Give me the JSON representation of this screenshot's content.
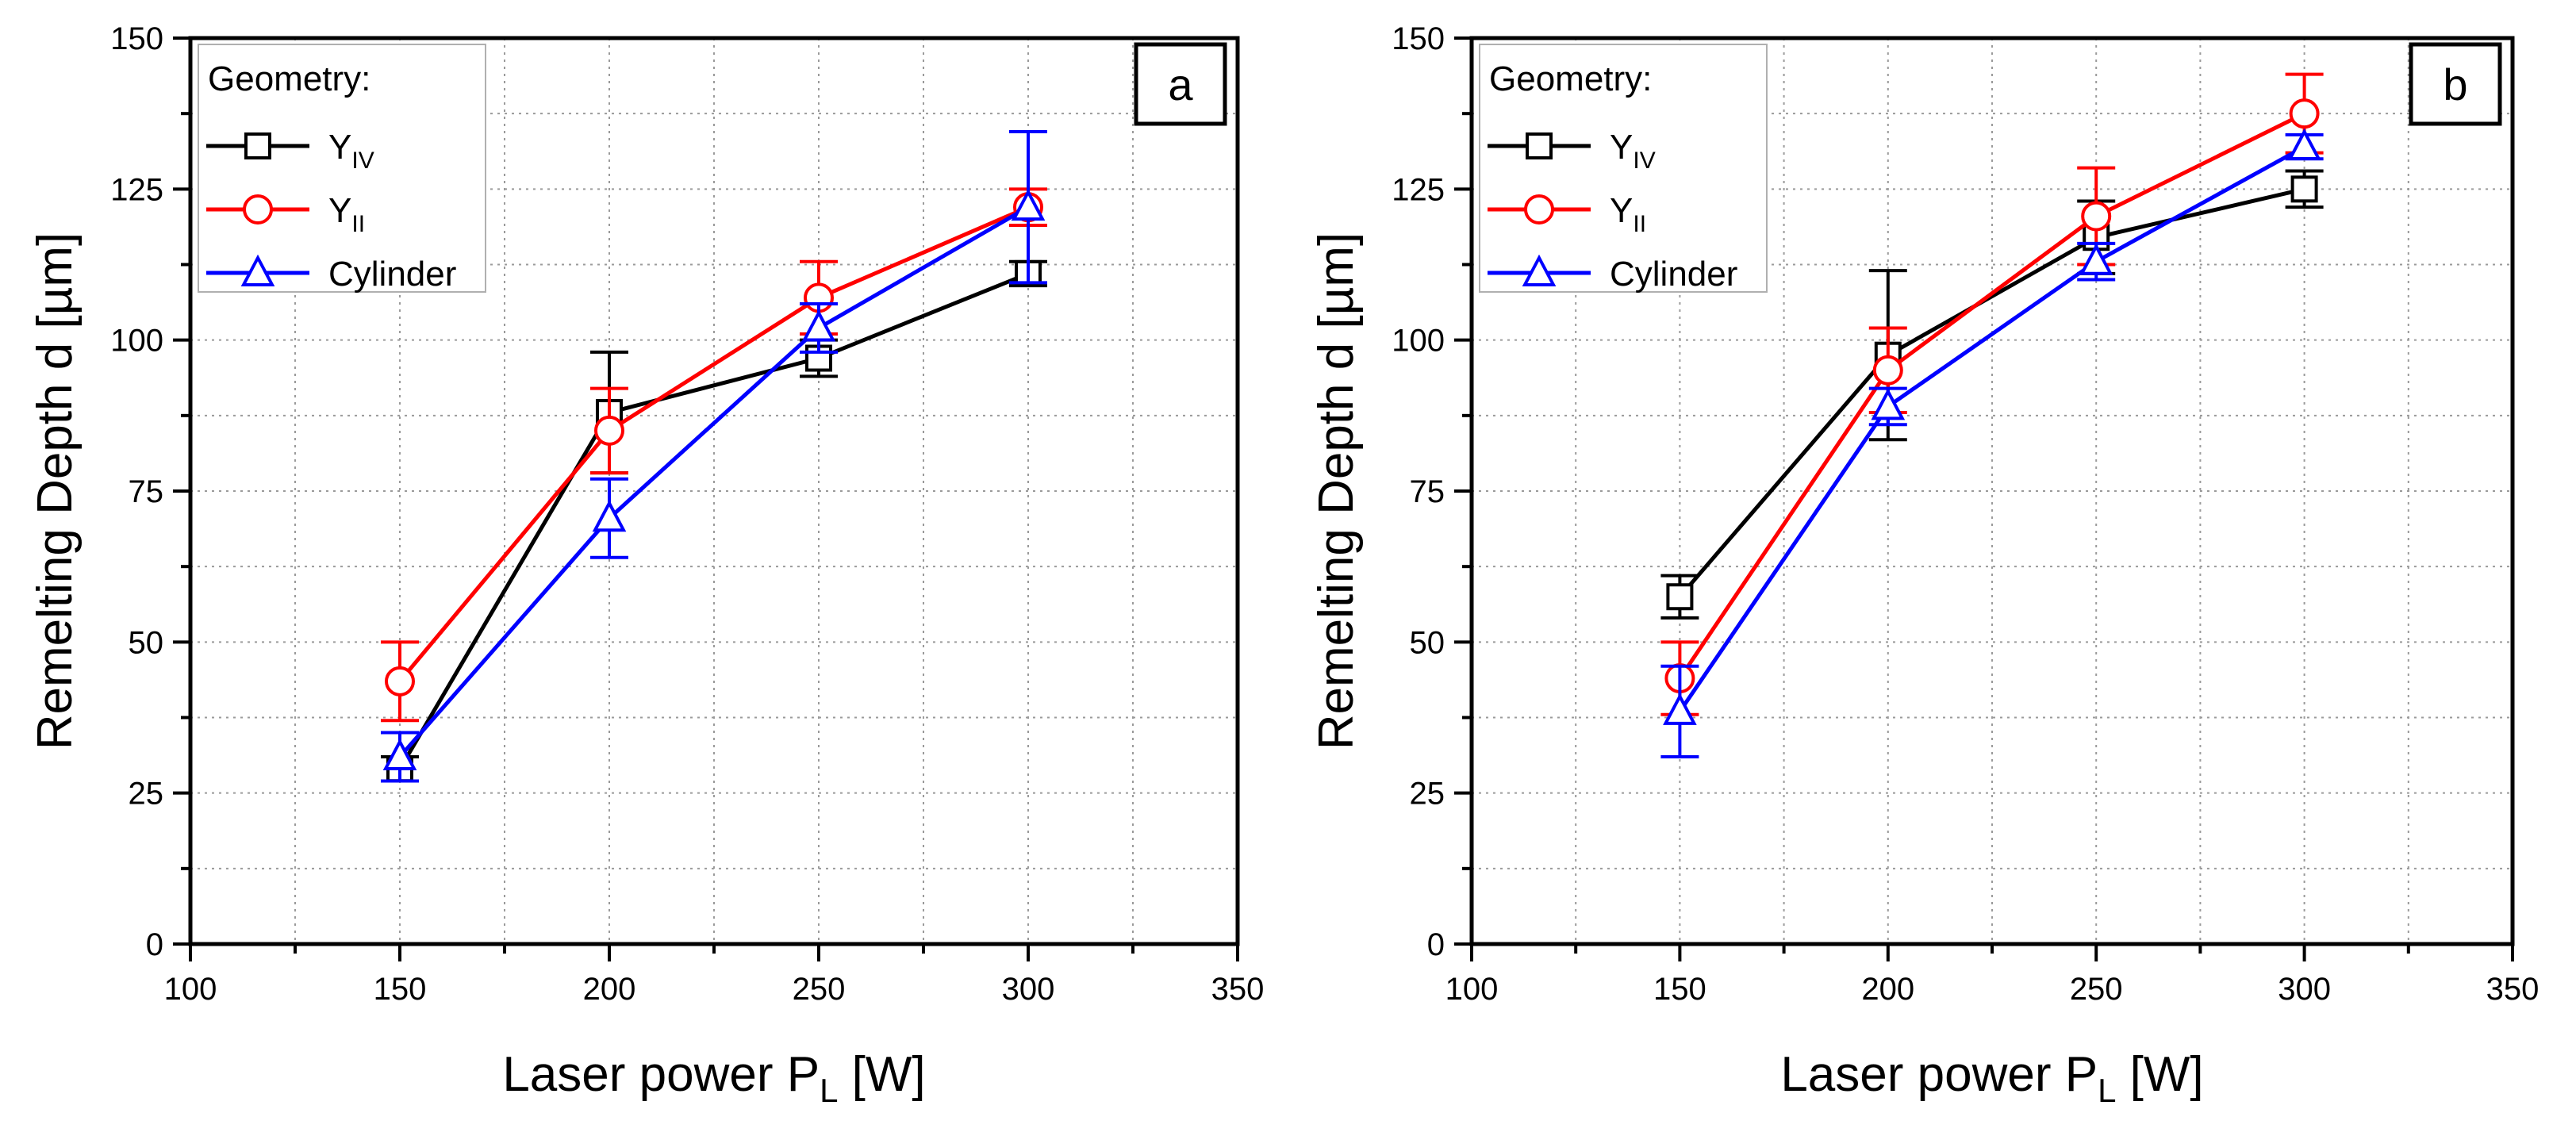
{
  "chart_data": [
    {
      "type": "line",
      "panel_label": "a",
      "xlabel": "Laser power P",
      "xlabel_sub": "L",
      "xlabel_unit": " [W]",
      "ylabel": "Remelting Depth d [µm]",
      "xlim": [
        100,
        350
      ],
      "ylim": [
        0,
        150
      ],
      "x_ticks": [
        100,
        150,
        200,
        250,
        300,
        350
      ],
      "y_ticks": [
        0,
        25,
        50,
        75,
        100,
        125,
        150
      ],
      "grid": true,
      "legend_title": "Geometry:",
      "legend_position": "top-left",
      "x": [
        150,
        200,
        250,
        300
      ],
      "series": [
        {
          "name": "Y",
          "name_sub": "IV",
          "color": "#000000",
          "marker": "square",
          "values": [
            29,
            88,
            97,
            111
          ],
          "errors": [
            2,
            10,
            3,
            2
          ]
        },
        {
          "name": "Y",
          "name_sub": "II",
          "color": "#ff0000",
          "marker": "circle",
          "values": [
            43.5,
            85,
            107,
            122
          ],
          "errors": [
            6.5,
            7,
            6,
            3
          ]
        },
        {
          "name": "Cylinder",
          "name_sub": "",
          "color": "#0000ff",
          "marker": "triangle",
          "values": [
            31,
            70.5,
            102,
            122
          ],
          "errors": [
            4,
            6.5,
            4,
            12.5
          ]
        }
      ]
    },
    {
      "type": "line",
      "panel_label": "b",
      "xlabel": "Laser power P",
      "xlabel_sub": "L",
      "xlabel_unit": " [W]",
      "ylabel": "Remelting Depth d [µm]",
      "xlim": [
        100,
        350
      ],
      "ylim": [
        0,
        150
      ],
      "x_ticks": [
        100,
        150,
        200,
        250,
        300,
        350
      ],
      "y_ticks": [
        0,
        25,
        50,
        75,
        100,
        125,
        150
      ],
      "grid": true,
      "legend_title": "Geometry:",
      "legend_position": "top-left",
      "x": [
        150,
        200,
        250,
        300
      ],
      "series": [
        {
          "name": "Y",
          "name_sub": "IV",
          "color": "#000000",
          "marker": "square",
          "values": [
            57.5,
            97.5,
            117,
            125
          ],
          "errors": [
            3.5,
            14,
            6,
            3
          ]
        },
        {
          "name": "Y",
          "name_sub": "II",
          "color": "#ff0000",
          "marker": "circle",
          "values": [
            44,
            95,
            120.5,
            137.5
          ],
          "errors": [
            6,
            7,
            8,
            6.5
          ]
        },
        {
          "name": "Cylinder",
          "name_sub": "",
          "color": "#0000ff",
          "marker": "triangle",
          "values": [
            38.5,
            89,
            113,
            132
          ],
          "errors": [
            7.5,
            3,
            3,
            2
          ]
        }
      ]
    }
  ]
}
